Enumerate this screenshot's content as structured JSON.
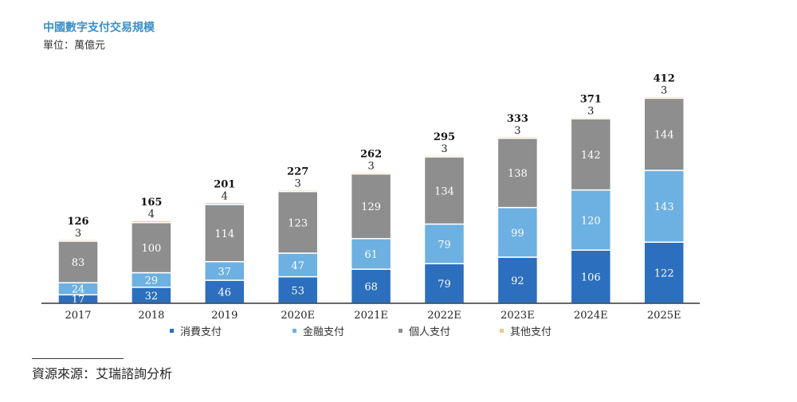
{
  "chart_data": {
    "type": "bar",
    "stacked": true,
    "title": "中國數字支付交易規模",
    "subtitle": "單位：萬億元",
    "categories": [
      "2017",
      "2018",
      "2019",
      "2020E",
      "2021E",
      "2022E",
      "2023E",
      "2024E",
      "2025E"
    ],
    "series": [
      {
        "name": "消費支付",
        "color": "#2b6fbe",
        "values": [
          17,
          32,
          46,
          53,
          68,
          79,
          92,
          106,
          122
        ]
      },
      {
        "name": "金融支付",
        "color": "#6db0e2",
        "values": [
          24,
          29,
          37,
          47,
          61,
          79,
          99,
          120,
          143
        ]
      },
      {
        "name": "個人支付",
        "color": "#8e8e8e",
        "values": [
          83,
          100,
          114,
          123,
          129,
          134,
          138,
          142,
          144
        ]
      },
      {
        "name": "其他支付",
        "color": "#f1c488",
        "values": [
          3,
          4,
          4,
          3,
          3,
          3,
          3,
          3,
          3
        ]
      }
    ],
    "totals": [
      126,
      165,
      201,
      227,
      262,
      295,
      333,
      371,
      412
    ],
    "legend": "bottom",
    "grid": false
  },
  "source": "資源來源：艾瑞諮詢分析"
}
